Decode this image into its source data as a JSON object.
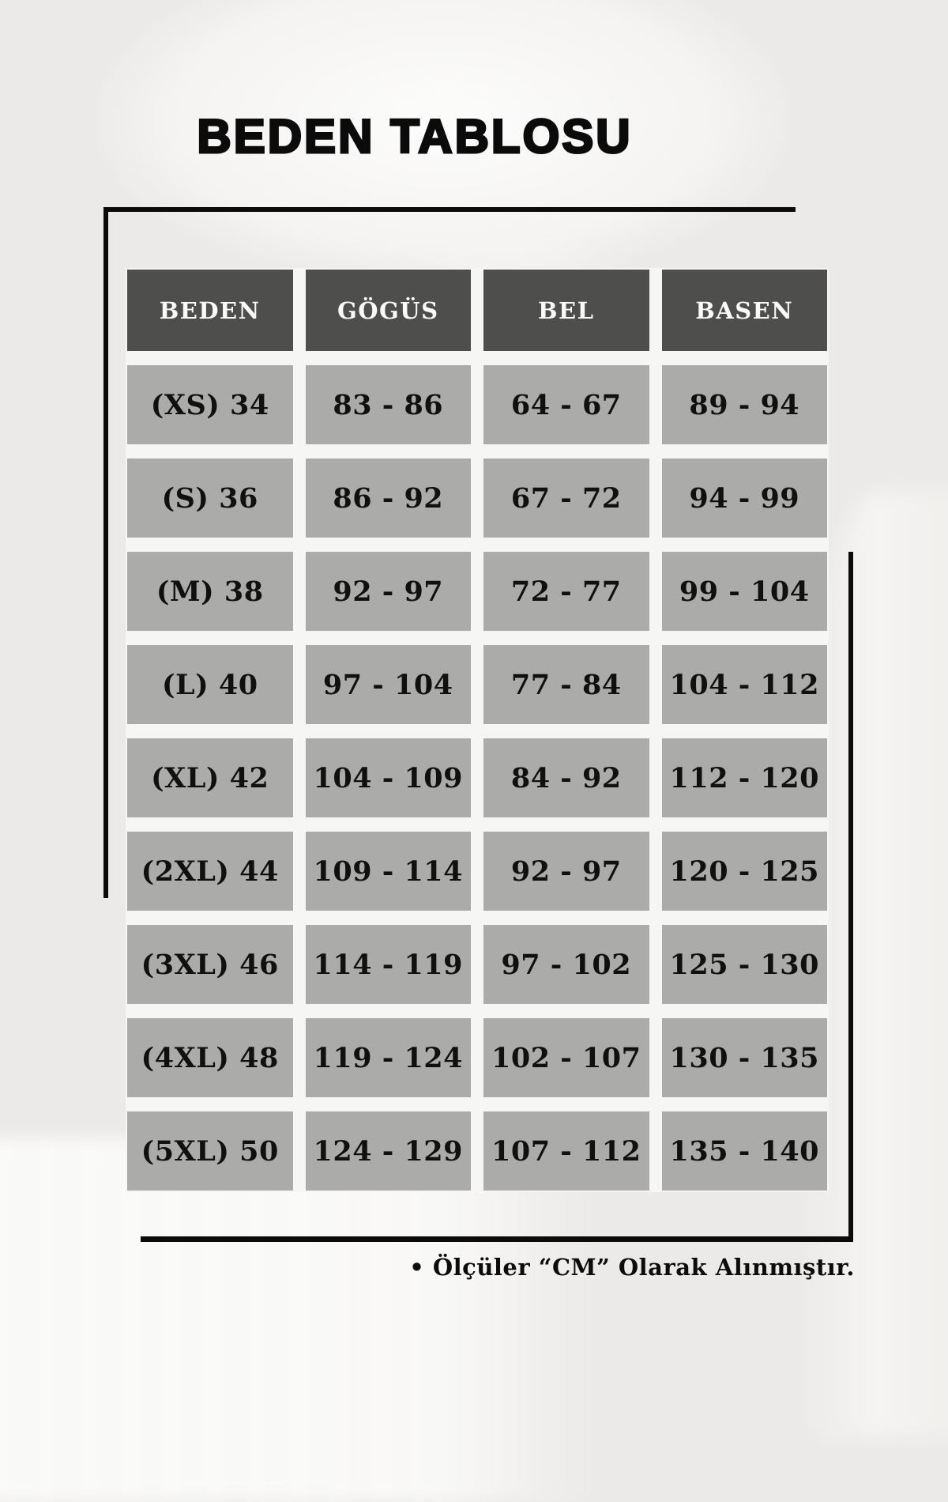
{
  "title": "BEDEN TABLOSU",
  "chart_data": {
    "type": "table",
    "title": "BEDEN TABLOSU",
    "headers": [
      "BEDEN",
      "GÖGÜS",
      "BEL",
      "BASEN"
    ],
    "rows": [
      [
        "(XS) 34",
        "83 - 86",
        "64 - 67",
        "89 - 94"
      ],
      [
        "(S) 36",
        "86 - 92",
        "67 - 72",
        "94 - 99"
      ],
      [
        "(M) 38",
        "92 - 97",
        "72 - 77",
        "99 - 104"
      ],
      [
        "(L) 40",
        "97 - 104",
        "77 - 84",
        "104 - 112"
      ],
      [
        "(XL) 42",
        "104 - 109",
        "84 - 92",
        "112 - 120"
      ],
      [
        "(2XL) 44",
        "109 - 114",
        "92 - 97",
        "120 - 125"
      ],
      [
        "(3XL) 46",
        "114 - 119",
        "97 - 102",
        "125 - 130"
      ],
      [
        "(4XL) 48",
        "119 - 124",
        "102 - 107",
        "130 - 135"
      ],
      [
        "(5XL) 50",
        "124 - 129",
        "107 - 112",
        "135 - 140"
      ]
    ],
    "unit_note": "Ölçüler “CM” Olarak Alınmıştır."
  },
  "footer": {
    "note": "• Ölçüler “CM” Olarak Alınmıştır."
  },
  "colors": {
    "page_bg": "#eceae8",
    "header_bg": "#4e4e4c",
    "header_text": "#fafafa",
    "cell_bg": "#ababa9",
    "cell_text": "#101010",
    "line": "#0b0b0b"
  }
}
